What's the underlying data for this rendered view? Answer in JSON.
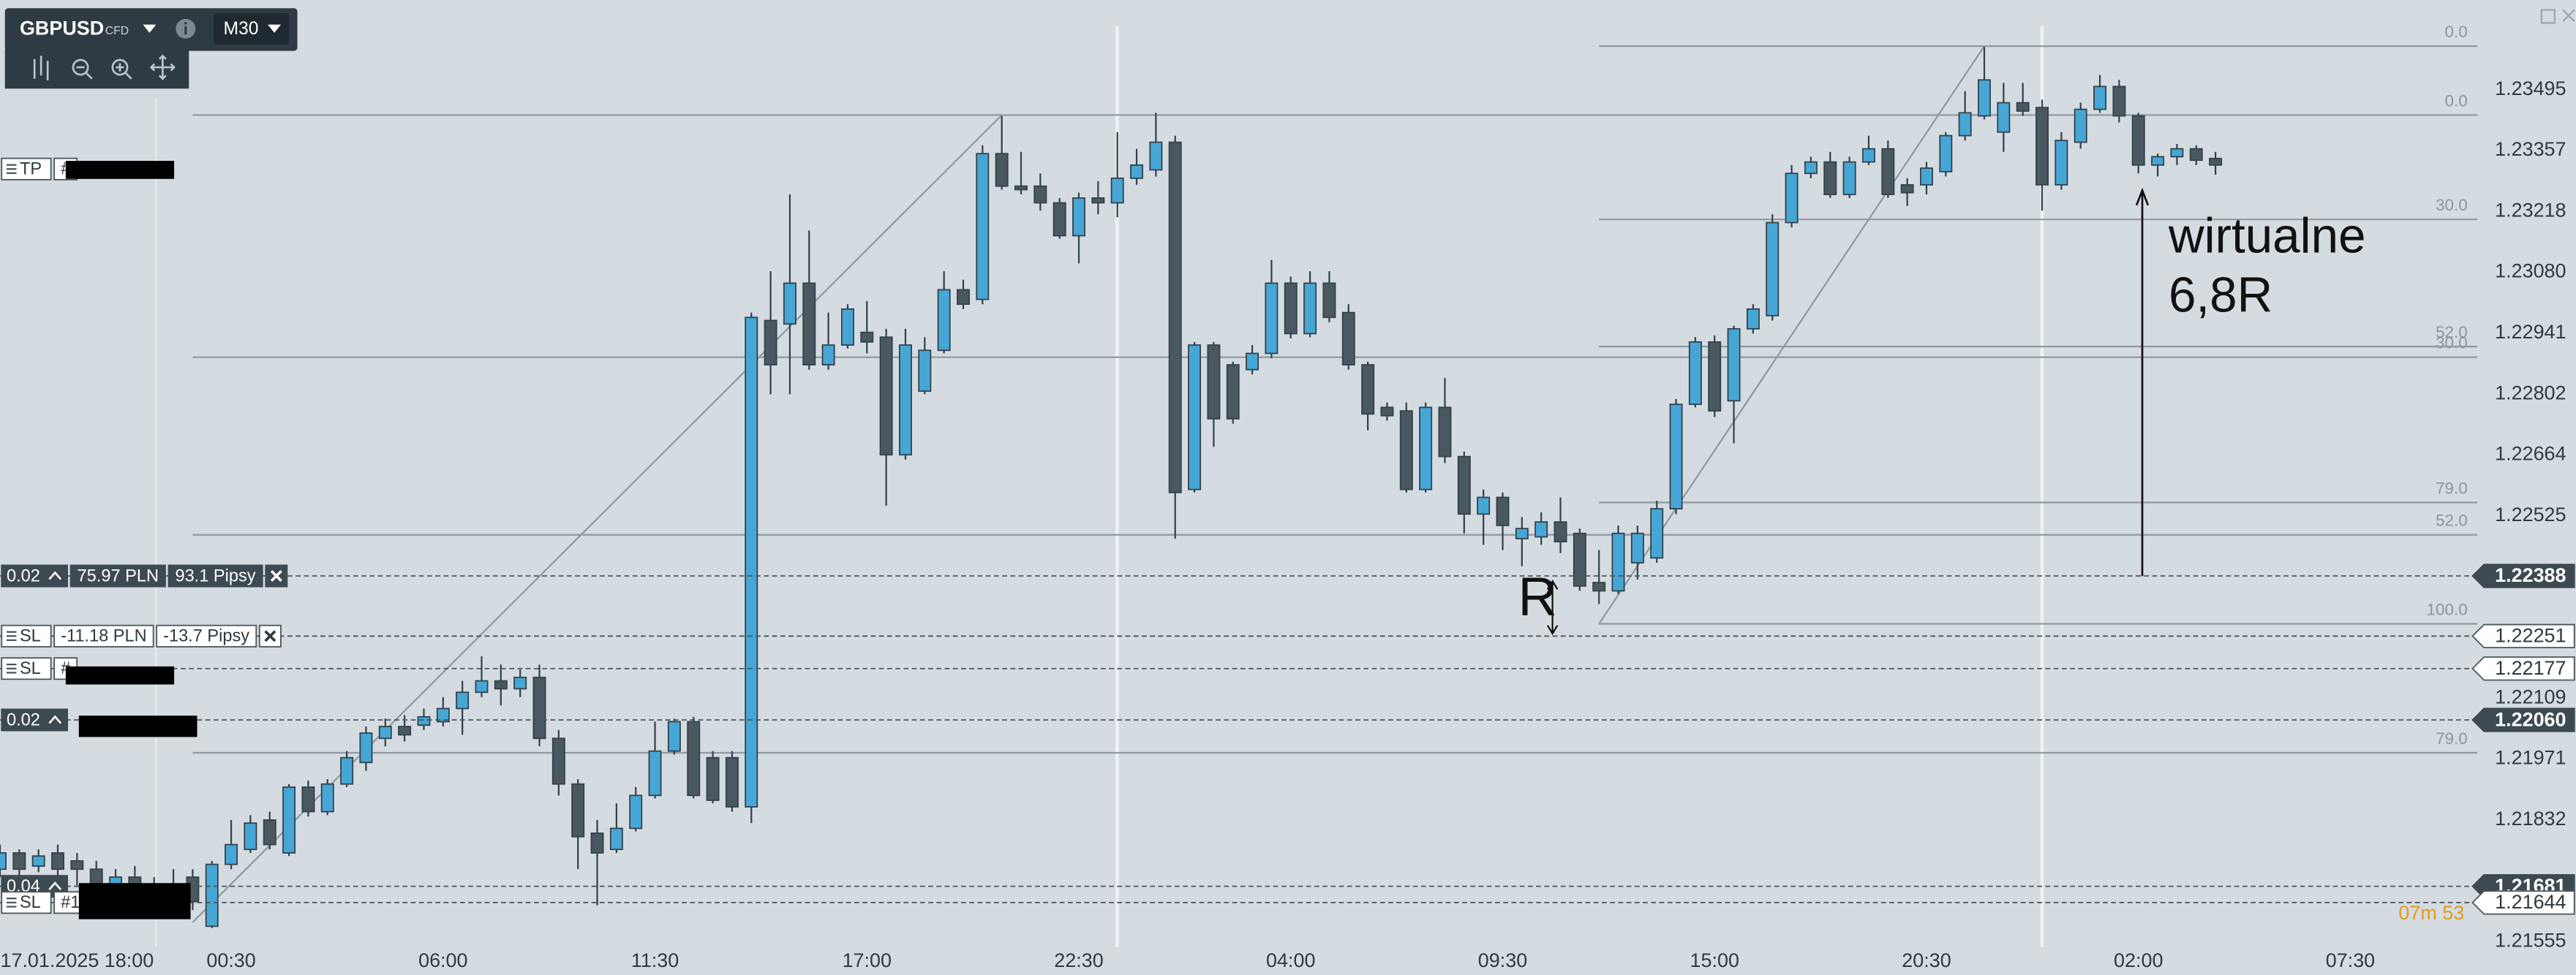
{
  "chart_data": {
    "type": "candlestick",
    "header": {
      "symbol": "GBPUSD",
      "instrument": "CFD",
      "timeframe": "M30"
    },
    "bull_color": "#46a6d6",
    "bear_color": "#4a585f",
    "wick_color": "#34424a",
    "xlim": [
      0,
      128
    ],
    "ylim": [
      1.2155,
      1.237
    ],
    "grid": false,
    "xticks": [
      {
        "value": 4,
        "label": "17.01.2025 18:00"
      },
      {
        "value": 12,
        "label": "00:30"
      },
      {
        "value": 23,
        "label": "06:00"
      },
      {
        "value": 34,
        "label": "11:30"
      },
      {
        "value": 45,
        "label": "17:00"
      },
      {
        "value": 56,
        "label": "22:30"
      },
      {
        "value": 67,
        "label": "04:00"
      },
      {
        "value": 78,
        "label": "09:30"
      },
      {
        "value": 89,
        "label": "15:00"
      },
      {
        "value": 100,
        "label": "20:30"
      },
      {
        "value": 111,
        "label": "02:00"
      },
      {
        "value": 122,
        "label": "07:30"
      }
    ],
    "yticks": [
      1.23495,
      1.23357,
      1.23218,
      {
        "value": 1.2308,
        "label": "1.23080"
      },
      1.22941,
      1.22802,
      1.22664,
      1.22525,
      1.22109,
      1.21971,
      1.21832,
      1.21555
    ],
    "candles": [
      [
        1.2172,
        1.21776,
        1.21702,
        1.21757
      ],
      [
        1.21757,
        1.21765,
        1.21702,
        1.2172
      ],
      [
        1.21727,
        1.21765,
        1.21713,
        1.2175
      ],
      [
        1.21757,
        1.21776,
        1.21698,
        1.2172
      ],
      [
        1.21739,
        1.21757,
        1.21683,
        1.2172
      ],
      [
        1.2172,
        1.21739,
        1.21664,
        1.21683
      ],
      [
        1.21683,
        1.2172,
        1.21646,
        1.21702
      ],
      [
        1.21702,
        1.21727,
        1.21653,
        1.21664
      ],
      [
        1.21664,
        1.21702,
        1.21627,
        1.21683
      ],
      [
        1.21683,
        1.2172,
        1.21638,
        1.21653
      ],
      [
        1.21702,
        1.2172,
        1.21627,
        1.21646
      ],
      [
        1.2159,
        1.21739,
        1.21586,
        1.21731
      ],
      [
        1.21731,
        1.21832,
        1.2172,
        1.21776
      ],
      [
        1.21765,
        1.21843,
        1.21757,
        1.21825
      ],
      [
        1.21832,
        1.21851,
        1.21765,
        1.21776
      ],
      [
        1.21757,
        1.21914,
        1.2175,
        1.21907
      ],
      [
        1.21907,
        1.21922,
        1.2184,
        1.21851
      ],
      [
        1.21851,
        1.21925,
        1.21843,
        1.21914
      ],
      [
        1.21914,
        1.21989,
        1.21907,
        1.21974
      ],
      [
        1.21963,
        1.22045,
        1.21944,
        1.2203
      ],
      [
        1.22018,
        1.22063,
        1.22,
        1.22045
      ],
      [
        1.22045,
        1.22071,
        1.22011,
        1.22026
      ],
      [
        1.22048,
        1.22086,
        1.22037,
        1.22067
      ],
      [
        1.22056,
        1.22112,
        1.22045,
        1.22086
      ],
      [
        1.22086,
        1.22149,
        1.22026,
        1.22123
      ],
      [
        1.22123,
        1.22205,
        1.22112,
        1.22149
      ],
      [
        1.22149,
        1.22186,
        1.22093,
        1.22131
      ],
      [
        1.22131,
        1.22175,
        1.22112,
        1.22157
      ],
      [
        1.22157,
        1.22186,
        1.22,
        1.22018
      ],
      [
        1.22018,
        1.22037,
        1.21888,
        1.21914
      ],
      [
        1.21914,
        1.21925,
        1.2172,
        1.21794
      ],
      [
        1.21802,
        1.21832,
        1.21638,
        1.21757
      ],
      [
        1.21765,
        1.2187,
        1.21757,
        1.21813
      ],
      [
        1.21813,
        1.21907,
        1.21806,
        1.21888
      ],
      [
        1.21888,
        1.22056,
        1.21881,
        1.21989
      ],
      [
        1.21989,
        1.22063,
        1.21981,
        1.22056
      ],
      [
        1.22056,
        1.22067,
        1.21881,
        1.21888
      ],
      [
        1.21974,
        1.21989,
        1.2187,
        1.21877
      ],
      [
        1.21974,
        1.21989,
        1.21851,
        1.21862
      ],
      [
        1.21862,
        1.22988,
        1.21825,
        1.22977
      ],
      [
        1.2297,
        1.23082,
        1.22802,
        1.22869
      ],
      [
        1.22962,
        1.23257,
        1.22802,
        1.23055
      ],
      [
        1.23055,
        1.23175,
        1.22858,
        1.22869
      ],
      [
        1.22869,
        1.22988,
        1.22858,
        1.22914
      ],
      [
        1.22914,
        1.23007,
        1.22906,
        1.22996
      ],
      [
        1.22943,
        1.23014,
        1.22895,
        1.22921
      ],
      [
        1.22932,
        1.22951,
        1.22548,
        1.22664
      ],
      [
        1.22664,
        1.22951,
        1.22653,
        1.22914
      ],
      [
        1.22809,
        1.22932,
        1.22802,
        1.22902
      ],
      [
        1.22902,
        1.23082,
        1.22895,
        1.2304
      ],
      [
        1.2304,
        1.23063,
        1.22996,
        1.23007
      ],
      [
        1.23018,
        1.23369,
        1.23007,
        1.2335
      ],
      [
        1.2335,
        1.23436,
        1.23268,
        1.23276
      ],
      [
        1.23276,
        1.23354,
        1.23257,
        1.23268
      ],
      [
        1.23276,
        1.23305,
        1.2322,
        1.23238
      ],
      [
        1.23238,
        1.23249,
        1.23156,
        1.23163
      ],
      [
        1.23163,
        1.23261,
        1.231,
        1.23249
      ],
      [
        1.23249,
        1.23287,
        1.23212,
        1.23238
      ],
      [
        1.23238,
        1.23399,
        1.23205,
        1.23294
      ],
      [
        1.23294,
        1.23361,
        1.23279,
        1.23324
      ],
      [
        1.23313,
        1.23443,
        1.23298,
        1.23376
      ],
      [
        1.23376,
        1.23391,
        1.22473,
        1.22578
      ],
      [
        1.22585,
        1.22921,
        1.22578,
        1.22914
      ],
      [
        1.22914,
        1.22921,
        1.22682,
        1.22746
      ],
      [
        1.22869,
        1.22876,
        1.22735,
        1.22746
      ],
      [
        1.22858,
        1.22914,
        1.22847,
        1.22895
      ],
      [
        1.22895,
        1.23108,
        1.22884,
        1.23055
      ],
      [
        1.23055,
        1.2307,
        1.22929,
        1.2294
      ],
      [
        1.2294,
        1.23082,
        1.22932,
        1.23055
      ],
      [
        1.23055,
        1.23082,
        1.22966,
        1.22977
      ],
      [
        1.22988,
        1.23007,
        1.22858,
        1.22869
      ],
      [
        1.22869,
        1.22876,
        1.2272,
        1.22757
      ],
      [
        1.22772,
        1.22783,
        1.22742,
        1.22753
      ],
      [
        1.22764,
        1.22783,
        1.22578,
        1.22585
      ],
      [
        1.22585,
        1.22783,
        1.22578,
        1.22772
      ],
      [
        1.22772,
        1.22839,
        1.22645,
        1.2266
      ],
      [
        1.2266,
        1.22671,
        1.22485,
        1.22529
      ],
      [
        1.22529,
        1.22585,
        1.22459,
        1.22567
      ],
      [
        1.22567,
        1.22578,
        1.22447,
        1.22503
      ],
      [
        1.22473,
        1.22522,
        1.2241,
        1.22496
      ],
      [
        1.22477,
        1.22533,
        1.22459,
        1.22511
      ],
      [
        1.22511,
        1.22567,
        1.2244,
        1.22466
      ],
      [
        1.22485,
        1.22496,
        1.22354,
        1.22365
      ],
      [
        1.22373,
        1.22447,
        1.22324,
        1.22354
      ],
      [
        1.22354,
        1.22503,
        1.22347,
        1.22485
      ],
      [
        1.22418,
        1.22503,
        1.2238,
        1.22485
      ],
      [
        1.22429,
        1.22559,
        1.22418,
        1.22541
      ],
      [
        1.22541,
        1.22791,
        1.22529,
        1.22779
      ],
      [
        1.22779,
        1.22932,
        1.22772,
        1.22921
      ],
      [
        1.22921,
        1.22936,
        1.2275,
        1.22764
      ],
      [
        1.22787,
        1.22958,
        1.2269,
        1.22951
      ],
      [
        1.22951,
        1.23007,
        1.2294,
        1.22996
      ],
      [
        1.22981,
        1.23212,
        1.2297,
        1.23193
      ],
      [
        1.23193,
        1.23324,
        1.23182,
        1.23305
      ],
      [
        1.23305,
        1.23343,
        1.23294,
        1.23331
      ],
      [
        1.23331,
        1.23354,
        1.23249,
        1.23257
      ],
      [
        1.23257,
        1.23343,
        1.23249,
        1.23331
      ],
      [
        1.23331,
        1.23391,
        1.23324,
        1.23361
      ],
      [
        1.23361,
        1.2338,
        1.23249,
        1.23257
      ],
      [
        1.23279,
        1.23294,
        1.23231,
        1.23261
      ],
      [
        1.23279,
        1.23331,
        1.23257,
        1.23317
      ],
      [
        1.23309,
        1.23399,
        1.23298,
        1.23391
      ],
      [
        1.23391,
        1.23492,
        1.2338,
        1.23443
      ],
      [
        1.23436,
        1.23593,
        1.23428,
        1.23518
      ],
      [
        1.23399,
        1.23511,
        1.23354,
        1.23466
      ],
      [
        1.23466,
        1.23511,
        1.23436,
        1.23447
      ],
      [
        1.23455,
        1.23473,
        1.2322,
        1.23279
      ],
      [
        1.23279,
        1.23399,
        1.23268,
        1.2338
      ],
      [
        1.23376,
        1.23466,
        1.23361,
        1.23451
      ],
      [
        1.23451,
        1.23529,
        1.23443,
        1.23503
      ],
      [
        1.23503,
        1.23518,
        1.23421,
        1.23436
      ],
      [
        1.23436,
        1.23443,
        1.23305,
        1.23324
      ],
      [
        1.23324,
        1.2335,
        1.23298,
        1.23343
      ],
      [
        1.23343,
        1.23372,
        1.23324,
        1.23361
      ],
      [
        1.23361,
        1.23369,
        1.23324,
        1.23335
      ],
      [
        1.23339,
        1.23354,
        1.23302,
        1.23324
      ]
    ],
    "fibs": [
      {
        "start_index": 10,
        "end_index": 52,
        "price_0": 1.23438,
        "price_100": 1.21599,
        "levels": [
          {
            "value": 0,
            "label": "0.0"
          },
          {
            "value": 30,
            "label": "30.0"
          },
          {
            "value": 52,
            "label": "52.0"
          },
          {
            "value": 79,
            "label": "79.0"
          }
        ]
      },
      {
        "start_index": 83,
        "end_index": 103,
        "price_0": 1.23595,
        "price_100": 1.22279,
        "levels": [
          {
            "value": 0,
            "label": "0.0"
          },
          {
            "value": 30,
            "label": "30.0"
          },
          {
            "value": 52,
            "label": "52.0"
          },
          {
            "value": 79,
            "label": "79.0"
          },
          {
            "value": 100,
            "label": "100.0"
          }
        ]
      }
    ],
    "orders": [
      {
        "tag": "TP",
        "style": "stop",
        "price": 1.23315,
        "price_tag": false,
        "id": "#"
      },
      {
        "tag": "0.02",
        "style": "position",
        "price": 1.22388,
        "price_tag": true,
        "pnl": "75.97 PLN",
        "pips": "93.1 Pipsy"
      },
      {
        "tag": "SL",
        "style": "stop",
        "price": 1.22251,
        "price_tag": true,
        "pnl": "-11.18 PLN",
        "pips": "-13.7 Pipsy"
      },
      {
        "tag": "SL",
        "style": "stop",
        "price": 1.22177,
        "price_tag": true,
        "id": "#"
      },
      {
        "tag": "0.02",
        "style": "position",
        "price": {
          "value": 1.2206,
          "label": "1.22060"
        },
        "price_tag": true
      },
      {
        "tag": "0.04",
        "style": "position",
        "price": 1.21681,
        "price_tag": true
      },
      {
        "tag": "SL",
        "style": "stop",
        "price": 1.21644,
        "price_tag": true,
        "id": "#1"
      }
    ],
    "countdown": "07m 53",
    "annotations": [
      {
        "text": "R"
      },
      {
        "text": "wirtualne"
      },
      {
        "text": "6,8R"
      }
    ]
  }
}
